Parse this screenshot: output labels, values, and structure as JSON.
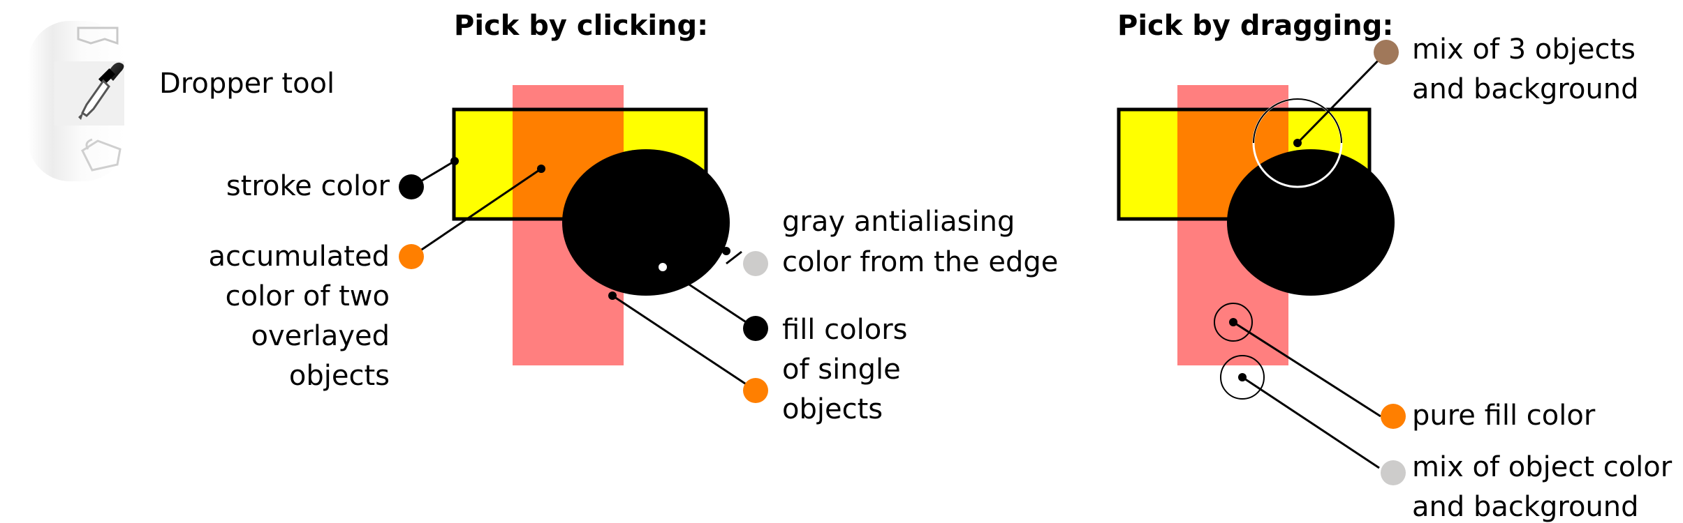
{
  "toolbar": {
    "tool_label": "Dropper tool",
    "icons": [
      "rectangle-tool-icon",
      "dropper-icon",
      "bucket-icon"
    ]
  },
  "click_section": {
    "title": "Pick by clicking:",
    "callouts": {
      "stroke": {
        "text": "stroke color",
        "dot_color": "#000000"
      },
      "accumulated": {
        "lines": [
          "accumulated",
          "color of two",
          "overlayed",
          "objects"
        ],
        "dot_color": "#ff7f00"
      },
      "gray": {
        "lines": [
          "gray antialiasing",
          "color from the edge"
        ],
        "dot_color": "#cdcccb"
      },
      "fill": {
        "lines": [
          "fill colors",
          "of single",
          "objects"
        ],
        "dot_colors": [
          "#000000",
          "#ff7f00"
        ]
      }
    }
  },
  "drag_section": {
    "title": "Pick by dragging:",
    "callouts": {
      "mix3": {
        "lines": [
          "mix of 3 objects",
          "and background"
        ],
        "dot_color": "#a0785a"
      },
      "pure": {
        "text": "pure fill color",
        "dot_color": "#ff7f00"
      },
      "mixbg": {
        "lines": [
          "mix of object color",
          "and background"
        ],
        "dot_color": "#cdcccb"
      }
    }
  },
  "colors": {
    "yellow": "#ffff00",
    "pink": "#ff7f7f",
    "orange": "#ff7f00",
    "black": "#000000"
  }
}
